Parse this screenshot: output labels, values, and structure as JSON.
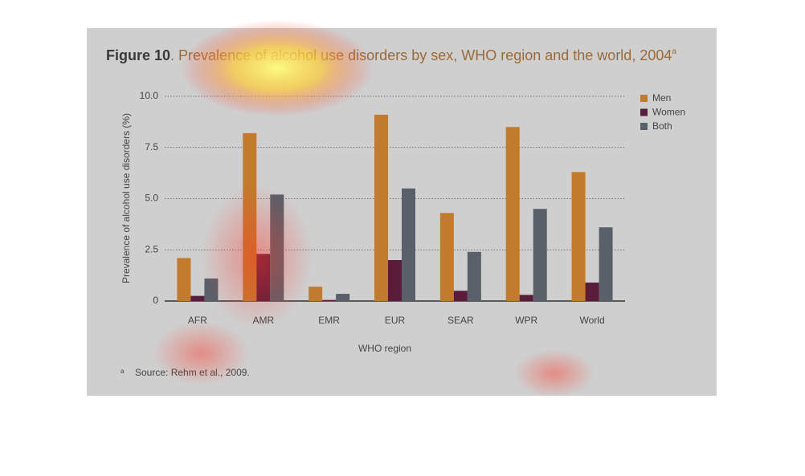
{
  "chart_data": {
    "type": "bar",
    "title_label": "Figure 10",
    "title": ". Prevalence of alcohol use disorders by sex, WHO region and the world, 2004",
    "title_note": "a",
    "y_label": "Prevalence of alcohol use disorders (%)",
    "x_label": "WHO region",
    "footnote_marker": "a",
    "footnote": "Source: Rehm et al., 2009.",
    "categories": [
      "AFR",
      "AMR",
      "EMR",
      "EUR",
      "SEAR",
      "WPR",
      "World"
    ],
    "series": [
      {
        "name": "Men",
        "color": "#c27a2c",
        "values": [
          2.1,
          8.2,
          0.7,
          9.1,
          4.3,
          8.5,
          6.3
        ]
      },
      {
        "name": "Women",
        "color": "#5b1c3c",
        "values": [
          0.25,
          2.3,
          0.05,
          2.0,
          0.5,
          0.3,
          0.9
        ]
      },
      {
        "name": "Both",
        "color": "#59606a",
        "values": [
          1.1,
          5.2,
          0.35,
          5.5,
          2.4,
          4.5,
          3.6
        ]
      }
    ],
    "ylim": [
      0,
      10
    ],
    "yticks": [
      0,
      2.5,
      {
        "value": 5,
        "label": "5.0"
      },
      7.5,
      {
        "value": 10,
        "label": "10.0"
      }
    ],
    "grid": true,
    "legend": "top-right"
  }
}
